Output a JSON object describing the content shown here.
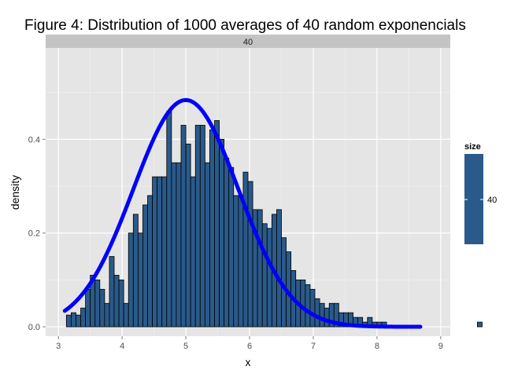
{
  "chart_data": {
    "type": "bar",
    "title": "Figure 4: Distribution of 1000 averages of 40 random exponencials",
    "facet_label": "40",
    "xlabel": "x",
    "ylabel": "density",
    "xlim": [
      2.8,
      9.15
    ],
    "ylim": [
      -0.02,
      0.595
    ],
    "x_ticks": [
      3,
      4,
      5,
      6,
      7,
      8,
      9
    ],
    "x_tick_labels": [
      "3",
      "4",
      "5",
      "6",
      "7",
      "8",
      "9"
    ],
    "y_ticks": [
      0.0,
      0.2,
      0.4
    ],
    "y_tick_labels": [
      "0.0",
      "0.2",
      "0.4"
    ],
    "grid": true,
    "bin_width": 0.075,
    "bins_start": 3.05,
    "histogram": {
      "fill": "#2a5a8a",
      "stroke": "#000000",
      "density": [
        0.0,
        0.025,
        0.03,
        0.025,
        0.04,
        0.08,
        0.11,
        0.1,
        0.08,
        0.05,
        0.15,
        0.11,
        0.1,
        0.05,
        0.2,
        0.24,
        0.2,
        0.26,
        0.28,
        0.32,
        0.32,
        0.32,
        0.46,
        0.35,
        0.35,
        0.43,
        0.39,
        0.32,
        0.43,
        0.43,
        0.35,
        0.42,
        0.44,
        0.4,
        0.36,
        0.34,
        0.28,
        0.28,
        0.33,
        0.31,
        0.25,
        0.25,
        0.22,
        0.21,
        0.24,
        0.25,
        0.19,
        0.16,
        0.12,
        0.1,
        0.1,
        0.09,
        0.08,
        0.06,
        0.05,
        0.04,
        0.05,
        0.05,
        0.03,
        0.03,
        0.03,
        0.02,
        0.02,
        0.01,
        0.02,
        0.01,
        0.01,
        0.01,
        0.0,
        0.0,
        0.0,
        0.0,
        0.0,
        0.0,
        0.0,
        0.0,
        0.0,
        0.0,
        0.0,
        0.0,
        0.0,
        0.0,
        0.0,
        0.0,
        0.0,
        0.0,
        0.0,
        0.01,
        0.0
      ]
    },
    "curve": {
      "color": "#0000ff",
      "mean": 5.0,
      "sd": 0.8246,
      "x_from": 3.1,
      "x_to": 8.68
    },
    "legend": {
      "title": "size",
      "label": "40",
      "color": "#2a5a8a",
      "placement": "right"
    }
  }
}
